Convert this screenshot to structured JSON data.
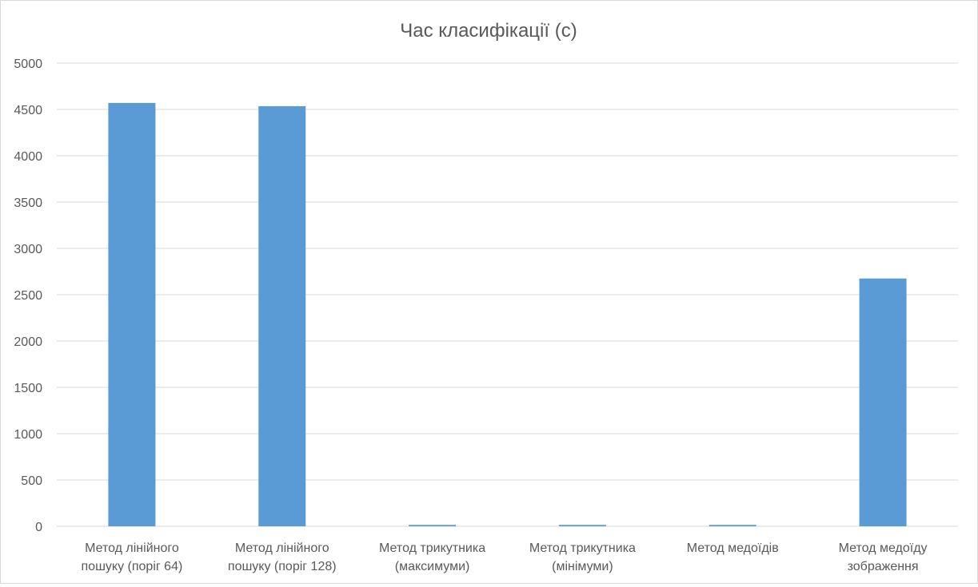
{
  "chart_data": {
    "type": "bar",
    "title": "Час класифікації (с)",
    "xlabel": "",
    "ylabel": "",
    "ylim": [
      0,
      5000
    ],
    "yticks": [
      0,
      500,
      1000,
      1500,
      2000,
      2500,
      3000,
      3500,
      4000,
      4500,
      5000
    ],
    "grid": true,
    "legend": "none",
    "bar_color": "#5b9bd5",
    "categories": [
      [
        "Метод лінійного",
        "пошуку (поріг 64)"
      ],
      [
        "Метод лінійного",
        "пошуку (поріг 128)"
      ],
      [
        "Метод трикутника",
        "(максимуми)"
      ],
      [
        "Метод трикутника",
        "(мінімуми)"
      ],
      [
        "Метод медоїдів"
      ],
      [
        "Метод медоїду",
        "зображення"
      ]
    ],
    "values": [
      4570,
      4535,
      15,
      15,
      15,
      2675
    ]
  }
}
